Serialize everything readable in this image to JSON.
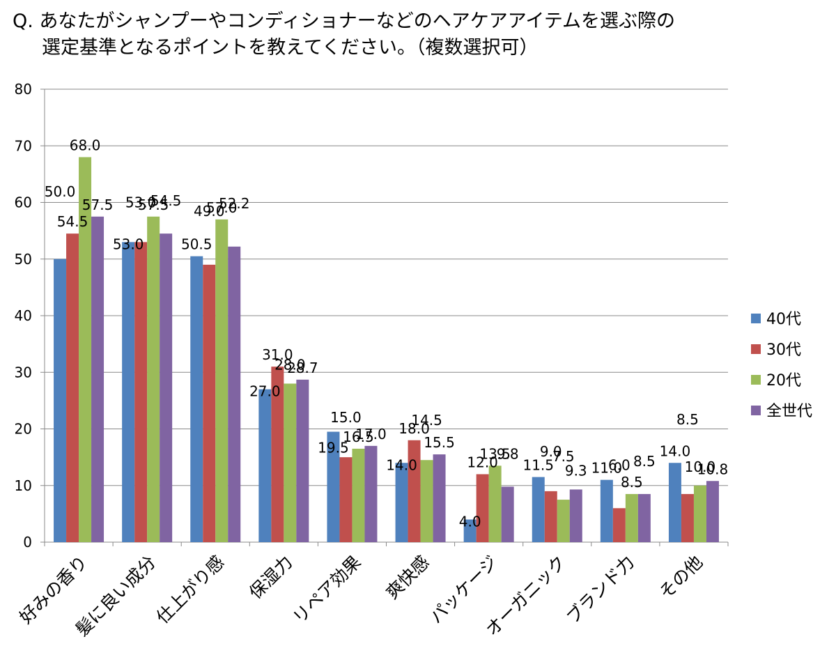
{
  "title": {
    "line1": "Q. あなたがシャンプーやコンディショナーなどのヘアケアアイテムを選ぶ際の",
    "line2": "選定基準となるポイントを教えてください。（複数選択可）"
  },
  "chart_data": {
    "type": "bar",
    "categories": [
      "好みの香り",
      "髪に良い成分",
      "仕上がり感",
      "保湿力",
      "リペア効果",
      "爽快感",
      "パッケージ",
      "オーガニック",
      "ブランド力",
      "その他"
    ],
    "series": [
      {
        "name": "40代",
        "color": "#4F81BD",
        "values": [
          50.0,
          53.0,
          50.5,
          27.0,
          19.5,
          14.0,
          4.0,
          11.5,
          11.0,
          14.0
        ]
      },
      {
        "name": "30代",
        "color": "#C0504D",
        "values": [
          54.5,
          53.0,
          49.0,
          31.0,
          15.0,
          18.0,
          12.0,
          9.0,
          6.0,
          8.5
        ]
      },
      {
        "name": "20代",
        "color": "#9BBB59",
        "values": [
          68.0,
          57.5,
          57.0,
          28.0,
          16.5,
          14.5,
          13.5,
          7.5,
          8.5,
          10.0
        ]
      },
      {
        "name": "全世代",
        "color": "#8064A2",
        "values": [
          57.5,
          54.5,
          52.2,
          28.7,
          17.0,
          15.5,
          9.8,
          9.3,
          8.5,
          10.8
        ]
      }
    ],
    "data_labels": [
      [
        "50.0",
        "53.0",
        "50.5",
        "27.0",
        "19.5",
        "14.0",
        "4.0",
        "11.5",
        "11.0",
        "14.0"
      ],
      [
        "54.5",
        "53.0",
        "49.0",
        "31.0",
        "15.0",
        "18.0",
        "12.0",
        "9.0",
        "6.0",
        "8.5"
      ],
      [
        "68.0",
        "57.5",
        "57.0",
        "28.0",
        "16.5",
        "14.5",
        "13.5",
        "7.5",
        "8.5",
        "10.0"
      ],
      [
        "57.5",
        "54.5",
        "52.2",
        "28.7",
        "17.0",
        "15.5",
        "9.8",
        "9.3",
        "8.5",
        "10.8"
      ]
    ],
    "yticks": [
      "0",
      "10",
      "20",
      "30",
      "40",
      "50",
      "60",
      "70",
      "80"
    ],
    "ylim": [
      0,
      80
    ],
    "grid": true,
    "legend_position": "right"
  }
}
